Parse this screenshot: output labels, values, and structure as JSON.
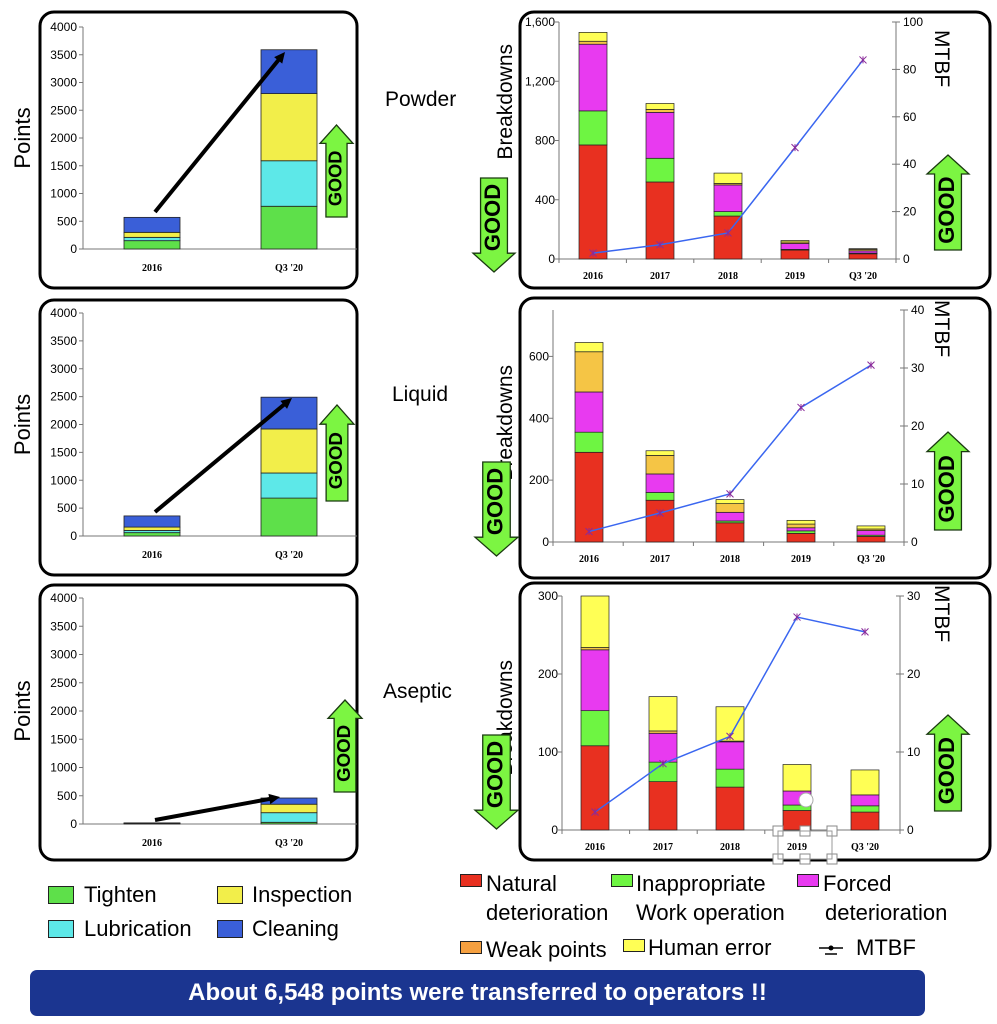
{
  "section_labels": [
    "Powder",
    "Liquid",
    "Aseptic"
  ],
  "good_label": "GOOD",
  "banner": "About 6,548 points  were transferred to operators !!",
  "points_legend": [
    {
      "name": "Tighten",
      "color": "#5ee04a"
    },
    {
      "name": "Inspection",
      "color": "#f2ee4a"
    },
    {
      "name": "Lubrication",
      "color": "#5de8e8"
    },
    {
      "name": "Cleaning",
      "color": "#3a5fd8"
    }
  ],
  "breakdown_legend": [
    {
      "name": "Natural deterioration",
      "line1": "Natural",
      "line2": "deterioration",
      "color": "#e83020"
    },
    {
      "name": "Inappropriate Work operation",
      "line1": "Inappropriate",
      "line2": "Work operation",
      "color": "#6ef542"
    },
    {
      "name": "Forced deterioration",
      "line1": "Forced",
      "line2": "deterioration",
      "color": "#e83af0"
    },
    {
      "name": "Weak points",
      "color": "#f5a040"
    },
    {
      "name": "Human error",
      "color": "#ffff55"
    },
    {
      "name": "MTBF",
      "color": "#3a66f0"
    }
  ],
  "chart_data": [
    {
      "type": "bar",
      "stacked": true,
      "section": "Powder",
      "ylabel": "Points",
      "ylim": [
        0,
        4000
      ],
      "yticks": [
        0,
        500,
        1000,
        1500,
        2000,
        2500,
        3000,
        3500,
        4000
      ],
      "categories": [
        "2016",
        "Q3 '20"
      ],
      "series": [
        {
          "name": "Tighten",
          "values": [
            150,
            770
          ]
        },
        {
          "name": "Lubrication",
          "values": [
            60,
            820
          ]
        },
        {
          "name": "Inspection",
          "values": [
            90,
            1210
          ]
        },
        {
          "name": "Cleaning",
          "values": [
            270,
            790
          ]
        }
      ]
    },
    {
      "type": "bar",
      "stacked": true,
      "section": "Liquid",
      "ylabel": "Points",
      "ylim": [
        0,
        4000
      ],
      "yticks": [
        0,
        500,
        1000,
        1500,
        2000,
        2500,
        3000,
        3500,
        4000
      ],
      "categories": [
        "2016",
        "Q3 '20"
      ],
      "series": [
        {
          "name": "Tighten",
          "values": [
            60,
            680
          ]
        },
        {
          "name": "Lubrication",
          "values": [
            40,
            450
          ]
        },
        {
          "name": "Inspection",
          "values": [
            60,
            790
          ]
        },
        {
          "name": "Cleaning",
          "values": [
            200,
            570
          ]
        }
      ]
    },
    {
      "type": "bar",
      "stacked": true,
      "section": "Aseptic",
      "ylabel": "Points",
      "ylim": [
        0,
        4000
      ],
      "yticks": [
        0,
        500,
        1000,
        1500,
        2000,
        2500,
        3000,
        3500,
        4000
      ],
      "categories": [
        "2016",
        "Q3 '20"
      ],
      "series": [
        {
          "name": "Tighten",
          "values": [
            5,
            30
          ]
        },
        {
          "name": "Lubrication",
          "values": [
            5,
            170
          ]
        },
        {
          "name": "Inspection",
          "values": [
            5,
            150
          ]
        },
        {
          "name": "Cleaning",
          "values": [
            5,
            110
          ]
        }
      ]
    },
    {
      "type": "bar+line",
      "stacked": true,
      "section": "Powder",
      "ylabel": "Breakdowns",
      "y2label": "MTBF",
      "ylim": [
        0,
        1600
      ],
      "yticks": [
        "0",
        "400",
        "800",
        "1,200",
        "1,600"
      ],
      "y2lim": [
        0,
        100
      ],
      "y2ticks": [
        0,
        20,
        40,
        60,
        80,
        100
      ],
      "categories": [
        "2016",
        "2017",
        "2018",
        "2019",
        "Q3 '20"
      ],
      "series": [
        {
          "name": "Natural deterioration",
          "values": [
            770,
            520,
            290,
            60,
            35
          ]
        },
        {
          "name": "Inappropriate Work operation",
          "values": [
            230,
            160,
            30,
            5,
            5
          ]
        },
        {
          "name": "Forced deterioration",
          "values": [
            450,
            310,
            180,
            40,
            15
          ]
        },
        {
          "name": "Weak points",
          "values": [
            20,
            20,
            10,
            10,
            10
          ]
        },
        {
          "name": "Human error",
          "values": [
            60,
            40,
            70,
            10,
            5
          ]
        }
      ],
      "line": {
        "name": "MTBF",
        "values": [
          2.5,
          6,
          11,
          47,
          84
        ]
      }
    },
    {
      "type": "bar+line",
      "stacked": true,
      "section": "Liquid",
      "ylabel": "Breakdowns",
      "y2label": "MTBF",
      "ylim": [
        0,
        750
      ],
      "yticks": [
        "0",
        "200",
        "400",
        "600"
      ],
      "y2lim": [
        0,
        40
      ],
      "y2ticks": [
        0,
        10,
        20,
        30,
        40
      ],
      "categories": [
        "2016",
        "2017",
        "2018",
        "2019",
        "Q3 '20"
      ],
      "series": [
        {
          "name": "Natural deterioration",
          "values": [
            290,
            135,
            62,
            28,
            18
          ]
        },
        {
          "name": "Inappropriate Work operation",
          "values": [
            65,
            25,
            6,
            8,
            4
          ]
        },
        {
          "name": "Forced deterioration",
          "values": [
            130,
            60,
            28,
            10,
            15
          ]
        },
        {
          "name": "Weak points",
          "values": [
            130,
            60,
            28,
            12,
            5
          ]
        },
        {
          "name": "Human error",
          "values": [
            30,
            15,
            13,
            12,
            10
          ]
        }
      ],
      "line": {
        "name": "MTBF",
        "values": [
          1.8,
          5,
          8.3,
          23.2,
          30.5
        ]
      }
    },
    {
      "type": "bar+line",
      "stacked": true,
      "section": "Aseptic",
      "ylabel": "Breakdowns",
      "y2label": "MTBF",
      "ylim": [
        0,
        300
      ],
      "yticks": [
        "0",
        "100",
        "200",
        "300"
      ],
      "y2lim": [
        0,
        30
      ],
      "y2ticks": [
        0,
        10,
        20,
        30
      ],
      "categories": [
        "2016",
        "2017",
        "2018",
        "2019",
        "Q3 '20"
      ],
      "series": [
        {
          "name": "Natural deterioration",
          "values": [
            108,
            62,
            55,
            25,
            23
          ]
        },
        {
          "name": "Inappropriate Work operation",
          "values": [
            45,
            25,
            23,
            7,
            8
          ]
        },
        {
          "name": "Forced deterioration",
          "values": [
            78,
            37,
            35,
            18,
            14
          ]
        },
        {
          "name": "Weak points",
          "values": [
            3,
            3,
            1,
            0,
            0
          ]
        },
        {
          "name": "Human error",
          "values": [
            66,
            44,
            44,
            34,
            32
          ]
        }
      ],
      "line": {
        "name": "MTBF",
        "values": [
          2.3,
          8.5,
          12,
          27.3,
          25.4
        ]
      }
    }
  ]
}
